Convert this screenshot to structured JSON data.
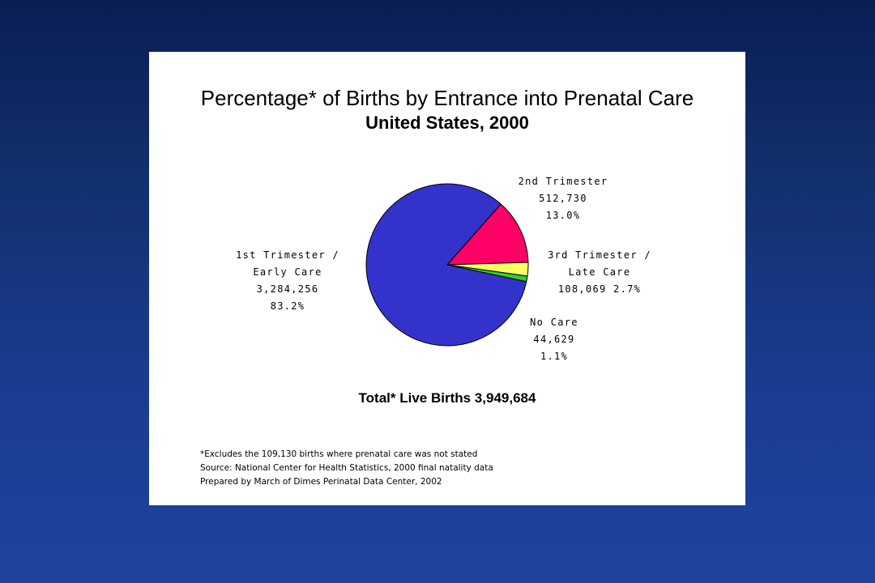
{
  "chart_data": {
    "type": "pie",
    "title": "Percentage* of Births by Entrance into Prenatal Care",
    "subtitle": "United States, 2000",
    "slices": [
      {
        "name": "1st Trimester / Early Care",
        "label_lines": [
          "1st Trimester /",
          "Early Care",
          "3,284,256",
          "83.2%"
        ],
        "count": 3284256,
        "percent": 83.2,
        "color": "#3333cc"
      },
      {
        "name": "2nd Trimester",
        "label_lines": [
          "2nd Trimester",
          "512,730",
          "13.0%"
        ],
        "count": 512730,
        "percent": 13.0,
        "color": "#ff0066"
      },
      {
        "name": "3rd Trimester / Late Care",
        "label_lines": [
          "3rd Trimester /",
          "Late Care",
          "108,069    2.7%"
        ],
        "count": 108069,
        "percent": 2.7,
        "color": "#ffff66"
      },
      {
        "name": "No Care",
        "label_lines": [
          "No Care",
          "44,629",
          "1.1%"
        ],
        "count": 44629,
        "percent": 1.1,
        "color": "#33cc33"
      }
    ],
    "total_label": "Total* Live Births 3,949,684",
    "footnotes": [
      "*Excludes the 109,130 births where prenatal care was not stated",
      "Source: National Center for Health Statistics, 2000 final natality data",
      "Prepared by March of Dimes Perinatal Data Center, 2002"
    ]
  }
}
